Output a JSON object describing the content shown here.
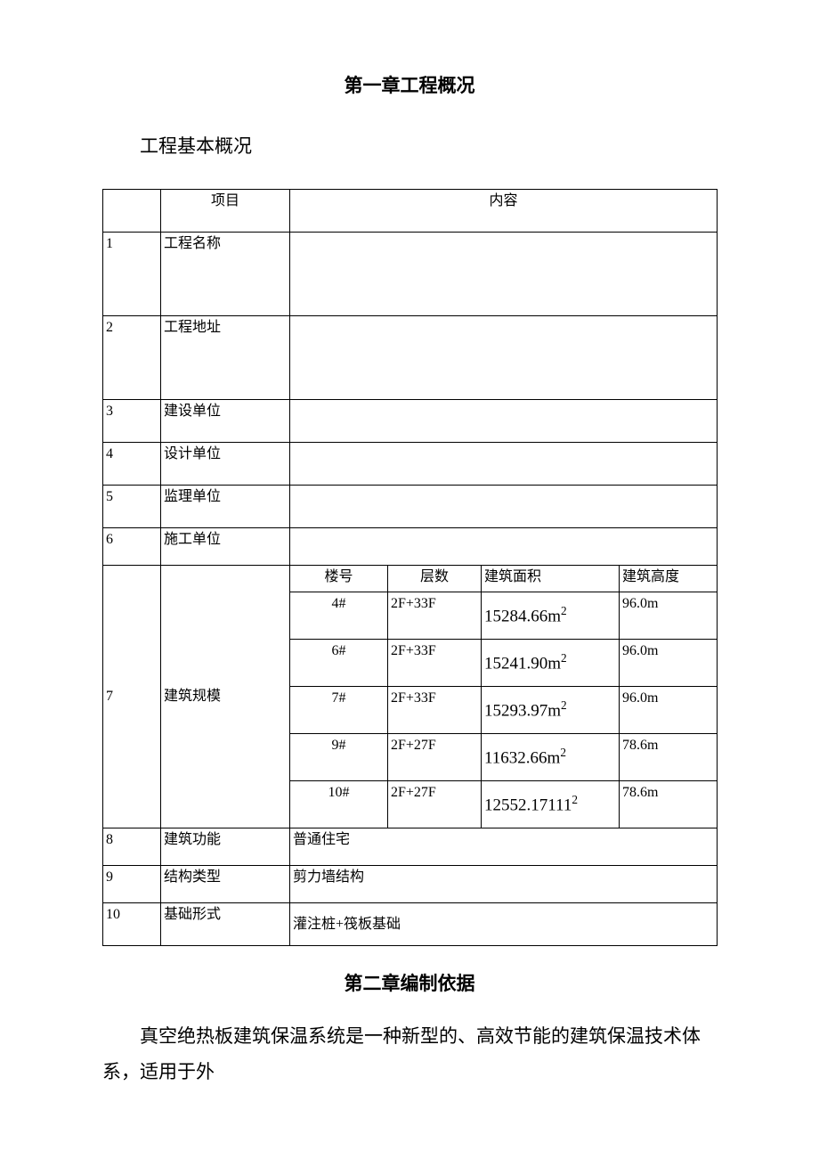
{
  "chapter1_title": "第一章工程概况",
  "section1_title": "工程基本概况",
  "header": {
    "item": "项目",
    "content": "内容"
  },
  "rows": {
    "r1": {
      "idx": "1",
      "item": "工程名称",
      "content": ""
    },
    "r2": {
      "idx": "2",
      "item": "工程地址",
      "content": ""
    },
    "r3": {
      "idx": "3",
      "item": "建设单位",
      "content": ""
    },
    "r4": {
      "idx": "4",
      "item": "设计单位",
      "content": ""
    },
    "r5": {
      "idx": "5",
      "item": "监理单位",
      "content": ""
    },
    "r6": {
      "idx": "6",
      "item": "施工单位",
      "content": ""
    },
    "r7": {
      "idx": "7",
      "item": "建筑规模"
    },
    "r8": {
      "idx": "8",
      "item": "建筑功能",
      "content": "普通住宅"
    },
    "r9": {
      "idx": "9",
      "item": "结构类型",
      "content": "剪力墙结构"
    },
    "r10": {
      "idx": "10",
      "item": "基础形式",
      "content": "灌注桩+筏板基础"
    }
  },
  "scale_header": {
    "building_no": "楼号",
    "floors": "层数",
    "area": "建筑面积",
    "height": "建筑高度"
  },
  "scale_rows": [
    {
      "building_no": "4#",
      "floors": "2F+33F",
      "area_val": "15284.66m",
      "area_sup": "2",
      "height": "96.0m"
    },
    {
      "building_no": "6#",
      "floors": "2F+33F",
      "area_val": "15241.90m",
      "area_sup": "2",
      "height": "96.0m"
    },
    {
      "building_no": "7#",
      "floors": "2F+33F",
      "area_val": "15293.97m",
      "area_sup": "2",
      "height": "96.0m"
    },
    {
      "building_no": "9#",
      "floors": "2F+27F",
      "area_val": "11632.66m",
      "area_sup": "2",
      "height": "78.6m"
    },
    {
      "building_no": "10#",
      "floors": "2F+27F",
      "area_val": "12552.17111",
      "area_sup": "2",
      "height": "78.6m"
    }
  ],
  "chapter2_title": "第二章编制依据",
  "body_paragraph": "真空绝热板建筑保温系统是一种新型的、高效节能的建筑保温技术体系，适用于外"
}
